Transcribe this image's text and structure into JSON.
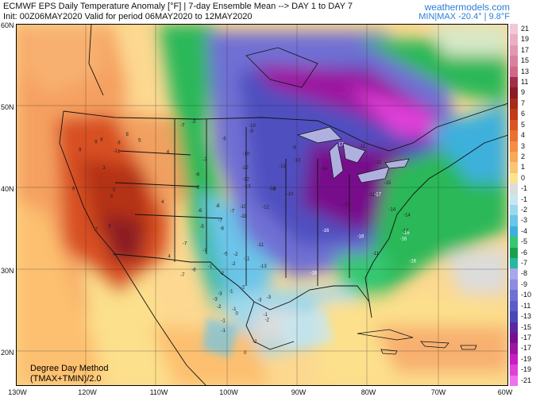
{
  "header": {
    "title": "ECMWF EPS Daily Temperature Anomaly [°F] | 7-day Ensemble Mean --> DAY 1 to DAY 7",
    "init": "Init: 00Z06MAY2020 Valid for period 06MAY2020 to 12MAY2020",
    "brand": "weathermodels.com",
    "minmax": "MIN|MAX -20.4° | 9.8°F"
  },
  "method": {
    "line1": "Degree Day Method",
    "line2": "(TMAX+TMIN)/2.0"
  },
  "axes": {
    "lat_labels": [
      "60N",
      "50N",
      "40N",
      "30N",
      "20N"
    ],
    "lon_labels": [
      "130W",
      "120W",
      "110W",
      "100W",
      "90W",
      "80W",
      "70W",
      "60W"
    ]
  },
  "legend": {
    "entries": [
      {
        "label": "21",
        "color": "#f0c8d8"
      },
      {
        "label": "19",
        "color": "#e8b0c4"
      },
      {
        "label": "17",
        "color": "#e098b0"
      },
      {
        "label": "15",
        "color": "#d8809c"
      },
      {
        "label": "13",
        "color": "#d06888"
      },
      {
        "label": "11",
        "color": "#a03048"
      },
      {
        "label": "9",
        "color": "#8c1c24"
      },
      {
        "label": "7",
        "color": "#a82a18"
      },
      {
        "label": "6",
        "color": "#c43a18"
      },
      {
        "label": "5",
        "color": "#dc5420"
      },
      {
        "label": "4",
        "color": "#ec7030"
      },
      {
        "label": "3",
        "color": "#f48c44"
      },
      {
        "label": "2",
        "color": "#f8a858"
      },
      {
        "label": "1",
        "color": "#fcc474"
      },
      {
        "label": "0",
        "color": "#fce48c"
      },
      {
        "label": "-1",
        "color": "#dcdcdc"
      },
      {
        "label": "-1",
        "color": "#c8e8f0"
      },
      {
        "label": "-2",
        "color": "#9cd8ec"
      },
      {
        "label": "-3",
        "color": "#6cc4e8"
      },
      {
        "label": "-4",
        "color": "#3cb0dc"
      },
      {
        "label": "-5",
        "color": "#34c870"
      },
      {
        "label": "-6",
        "color": "#1ca050"
      },
      {
        "label": "-7",
        "color": "#28b8a0"
      },
      {
        "label": "-8",
        "color": "#a8a8e8"
      },
      {
        "label": "-9",
        "color": "#8c8ce0"
      },
      {
        "label": "-10",
        "color": "#7070d4"
      },
      {
        "label": "-11",
        "color": "#5c5cc8"
      },
      {
        "label": "-13",
        "color": "#4848b8"
      },
      {
        "label": "-15",
        "color": "#5828a0"
      },
      {
        "label": "-17",
        "color": "#78108c"
      },
      {
        "label": "-17",
        "color": "#9c14a0"
      },
      {
        "label": "-19",
        "color": "#c81cc0"
      },
      {
        "label": "-19",
        "color": "#e040d8"
      },
      {
        "label": "-21",
        "color": "#f070ec"
      }
    ]
  },
  "map_values": [
    {
      "v": "-11",
      "c": "#222"
    },
    {
      "v": "-13",
      "c": "#222"
    },
    {
      "v": "-15",
      "c": "#222"
    },
    {
      "v": "-16",
      "c": "#fff"
    },
    {
      "v": "-17",
      "c": "#fff"
    },
    {
      "v": "-14",
      "c": "#222"
    },
    {
      "v": "-12",
      "c": "#222"
    },
    {
      "v": "-10",
      "c": "#222"
    },
    {
      "v": "-9",
      "c": "#222"
    },
    {
      "v": "-7",
      "c": "#222"
    },
    {
      "v": "-5",
      "c": "#222"
    },
    {
      "v": "-3",
      "c": "#222"
    },
    {
      "v": "-1",
      "c": "#222"
    },
    {
      "v": "2",
      "c": "#222"
    },
    {
      "v": "4",
      "c": "#222"
    },
    {
      "v": "5",
      "c": "#222"
    },
    {
      "v": "7",
      "c": "#222"
    },
    {
      "v": "8",
      "c": "#222"
    },
    {
      "v": "9",
      "c": "#222"
    },
    {
      "v": "-6",
      "c": "#222"
    },
    {
      "v": "-8",
      "c": "#222"
    },
    {
      "v": "-2",
      "c": "#222"
    },
    {
      "v": "0",
      "c": "#222"
    },
    {
      "v": "3",
      "c": "#222"
    }
  ]
}
